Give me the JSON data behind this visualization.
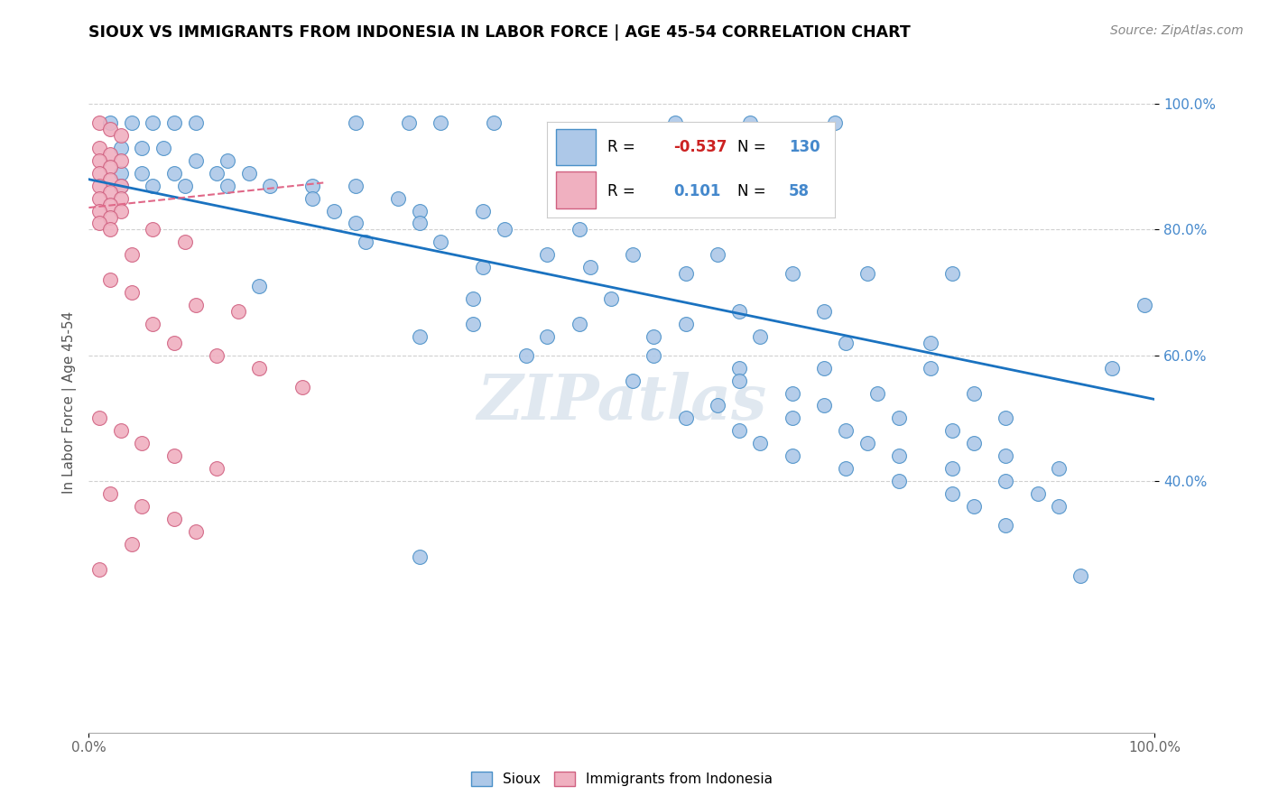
{
  "title": "SIOUX VS IMMIGRANTS FROM INDONESIA IN LABOR FORCE | AGE 45-54 CORRELATION CHART",
  "source": "Source: ZipAtlas.com",
  "ylabel": "In Labor Force | Age 45-54",
  "legend_label1": "Sioux",
  "legend_label2": "Immigrants from Indonesia",
  "R1": -0.537,
  "N1": 130,
  "R2": 0.101,
  "N2": 58,
  "watermark": "ZIPatlas",
  "blue_face": "#adc8e8",
  "blue_edge": "#4a90c8",
  "pink_face": "#f0b0c0",
  "pink_edge": "#d06080",
  "blue_line": "#1a72c0",
  "pink_line": "#e06888",
  "grid_color": "#d0d0d0",
  "blue_scatter_x": [
    0.02,
    0.04,
    0.06,
    0.08,
    0.1,
    0.25,
    0.3,
    0.33,
    0.38,
    0.55,
    0.62,
    0.7,
    0.03,
    0.05,
    0.07,
    0.1,
    0.13,
    0.03,
    0.05,
    0.08,
    0.12,
    0.15,
    0.03,
    0.06,
    0.09,
    0.13,
    0.17,
    0.21,
    0.25,
    0.21,
    0.29,
    0.23,
    0.31,
    0.37,
    0.25,
    0.31,
    0.39,
    0.46,
    0.26,
    0.33,
    0.43,
    0.51,
    0.59,
    0.37,
    0.47,
    0.56,
    0.66,
    0.73,
    0.81,
    0.16,
    0.36,
    0.49,
    0.61,
    0.69,
    0.36,
    0.46,
    0.56,
    0.31,
    0.43,
    0.53,
    0.63,
    0.71,
    0.79,
    0.41,
    0.53,
    0.61,
    0.69,
    0.79,
    0.51,
    0.61,
    0.66,
    0.74,
    0.83,
    0.59,
    0.69,
    0.56,
    0.66,
    0.76,
    0.86,
    0.61,
    0.71,
    0.81,
    0.63,
    0.73,
    0.83,
    0.66,
    0.76,
    0.86,
    0.71,
    0.81,
    0.91,
    0.76,
    0.86,
    0.81,
    0.89,
    0.83,
    0.91,
    0.86,
    0.31,
    0.93,
    0.96,
    0.99
  ],
  "blue_scatter_y": [
    0.97,
    0.97,
    0.97,
    0.97,
    0.97,
    0.97,
    0.97,
    0.97,
    0.97,
    0.97,
    0.97,
    0.97,
    0.93,
    0.93,
    0.93,
    0.91,
    0.91,
    0.89,
    0.89,
    0.89,
    0.89,
    0.89,
    0.87,
    0.87,
    0.87,
    0.87,
    0.87,
    0.87,
    0.87,
    0.85,
    0.85,
    0.83,
    0.83,
    0.83,
    0.81,
    0.81,
    0.8,
    0.8,
    0.78,
    0.78,
    0.76,
    0.76,
    0.76,
    0.74,
    0.74,
    0.73,
    0.73,
    0.73,
    0.73,
    0.71,
    0.69,
    0.69,
    0.67,
    0.67,
    0.65,
    0.65,
    0.65,
    0.63,
    0.63,
    0.63,
    0.63,
    0.62,
    0.62,
    0.6,
    0.6,
    0.58,
    0.58,
    0.58,
    0.56,
    0.56,
    0.54,
    0.54,
    0.54,
    0.52,
    0.52,
    0.5,
    0.5,
    0.5,
    0.5,
    0.48,
    0.48,
    0.48,
    0.46,
    0.46,
    0.46,
    0.44,
    0.44,
    0.44,
    0.42,
    0.42,
    0.42,
    0.4,
    0.4,
    0.38,
    0.38,
    0.36,
    0.36,
    0.33,
    0.28,
    0.25,
    0.58,
    0.68
  ],
  "pink_scatter_x": [
    0.01,
    0.02,
    0.03,
    0.01,
    0.02,
    0.03,
    0.01,
    0.02,
    0.01,
    0.02,
    0.03,
    0.01,
    0.02,
    0.03,
    0.01,
    0.02,
    0.03,
    0.01,
    0.02,
    0.01,
    0.02,
    0.06,
    0.09,
    0.04,
    0.02,
    0.04,
    0.1,
    0.14,
    0.06,
    0.08,
    0.12,
    0.16,
    0.2,
    0.01,
    0.03,
    0.05,
    0.08,
    0.12,
    0.02,
    0.05,
    0.08,
    0.1,
    0.04,
    0.01
  ],
  "pink_scatter_y": [
    0.97,
    0.96,
    0.95,
    0.93,
    0.92,
    0.91,
    0.91,
    0.9,
    0.89,
    0.88,
    0.87,
    0.87,
    0.86,
    0.85,
    0.85,
    0.84,
    0.83,
    0.83,
    0.82,
    0.81,
    0.8,
    0.8,
    0.78,
    0.76,
    0.72,
    0.7,
    0.68,
    0.67,
    0.65,
    0.62,
    0.6,
    0.58,
    0.55,
    0.5,
    0.48,
    0.46,
    0.44,
    0.42,
    0.38,
    0.36,
    0.34,
    0.32,
    0.3,
    0.26
  ]
}
